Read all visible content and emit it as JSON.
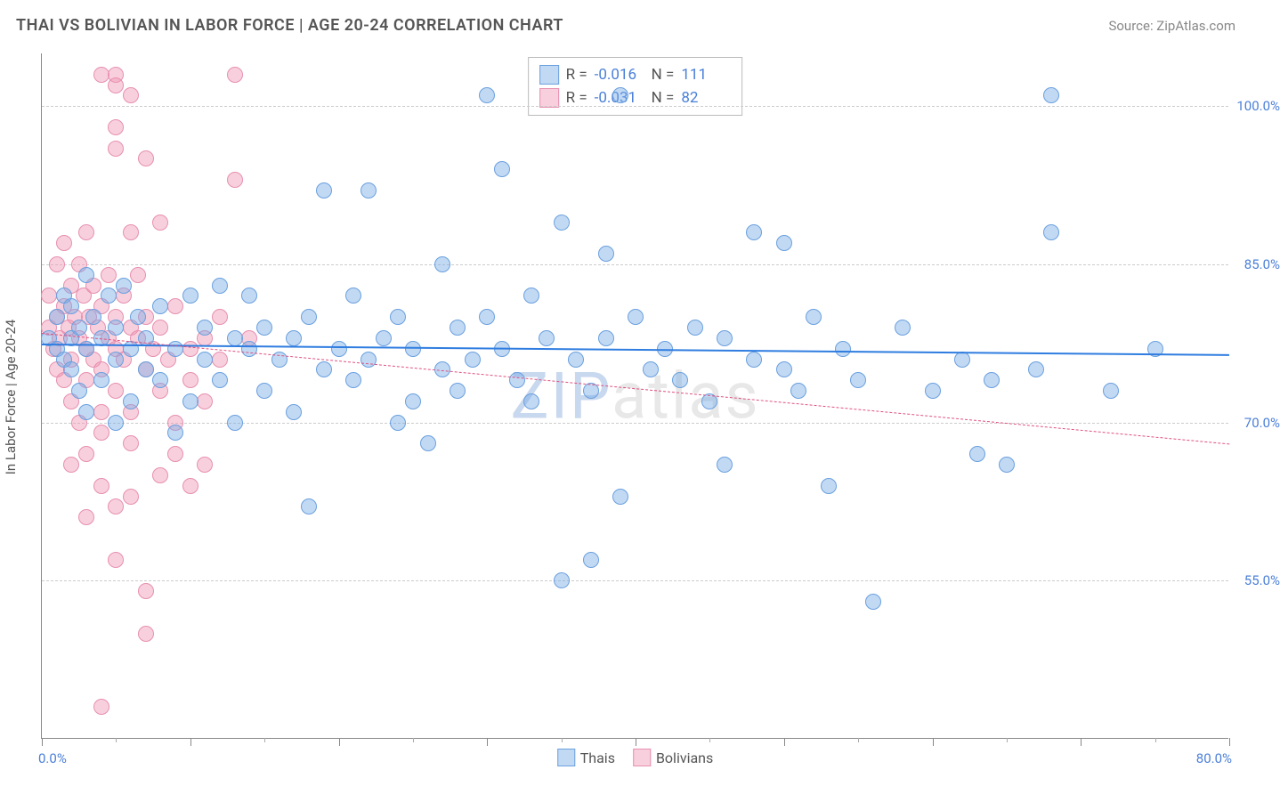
{
  "title": "THAI VS BOLIVIAN IN LABOR FORCE | AGE 20-24 CORRELATION CHART",
  "source": "Source: ZipAtlas.com",
  "ylabel": "In Labor Force | Age 20-24",
  "watermark": "ZIPatlas",
  "chart": {
    "type": "scatter",
    "background_color": "#ffffff",
    "grid_color": "#cccccc",
    "axis_color": "#888888",
    "xlim": [
      0,
      80
    ],
    "ylim": [
      40,
      105
    ],
    "x_tick_major_step": 10,
    "x_tick_minor_step": 5,
    "yticks": [
      55,
      70,
      85,
      100
    ],
    "ytick_labels": [
      "55.0%",
      "70.0%",
      "85.0%",
      "100.0%"
    ],
    "ytick_color": "#4a7fd8",
    "xaxis_min_label": "0.0%",
    "xaxis_max_label": "80.0%",
    "xaxis_label_color": "#4a7fd8",
    "marker_radius": 9,
    "marker_stroke_width": 1.5,
    "series": [
      {
        "name": "Thais",
        "fill": "rgba(120,170,230,0.45)",
        "stroke": "#6aa0de",
        "R": "-0.016",
        "N": "111",
        "trend": {
          "y_start": 77.5,
          "y_end": 76.5,
          "color": "#2f7de0",
          "width": 2.5,
          "dash": "solid"
        },
        "points": [
          [
            0.5,
            78
          ],
          [
            1,
            77
          ],
          [
            1,
            80
          ],
          [
            1.5,
            82
          ],
          [
            1.5,
            76
          ],
          [
            2,
            78
          ],
          [
            2,
            75
          ],
          [
            2,
            81
          ],
          [
            2.5,
            79
          ],
          [
            2.5,
            73
          ],
          [
            3,
            77
          ],
          [
            3,
            84
          ],
          [
            3,
            71
          ],
          [
            3.5,
            80
          ],
          [
            4,
            78
          ],
          [
            4,
            74
          ],
          [
            4.5,
            82
          ],
          [
            5,
            76
          ],
          [
            5,
            79
          ],
          [
            5,
            70
          ],
          [
            5.5,
            83
          ],
          [
            6,
            77
          ],
          [
            6,
            72
          ],
          [
            6.5,
            80
          ],
          [
            7,
            78
          ],
          [
            7,
            75
          ],
          [
            8,
            74
          ],
          [
            8,
            81
          ],
          [
            9,
            77
          ],
          [
            9,
            69
          ],
          [
            10,
            82
          ],
          [
            10,
            72
          ],
          [
            11,
            76
          ],
          [
            11,
            79
          ],
          [
            12,
            74
          ],
          [
            12,
            83
          ],
          [
            13,
            78
          ],
          [
            13,
            70
          ],
          [
            14,
            77
          ],
          [
            14,
            82
          ],
          [
            15,
            73
          ],
          [
            15,
            79
          ],
          [
            16,
            76
          ],
          [
            17,
            78
          ],
          [
            17,
            71
          ],
          [
            18,
            80
          ],
          [
            18,
            62
          ],
          [
            19,
            75
          ],
          [
            19,
            92
          ],
          [
            20,
            77
          ],
          [
            21,
            74
          ],
          [
            21,
            82
          ],
          [
            22,
            76
          ],
          [
            22,
            92
          ],
          [
            23,
            78
          ],
          [
            24,
            70
          ],
          [
            24,
            80
          ],
          [
            25,
            72
          ],
          [
            25,
            77
          ],
          [
            26,
            68
          ],
          [
            27,
            75
          ],
          [
            27,
            85
          ],
          [
            28,
            79
          ],
          [
            28,
            73
          ],
          [
            29,
            76
          ],
          [
            30,
            101
          ],
          [
            30,
            80
          ],
          [
            31,
            94
          ],
          [
            31,
            77
          ],
          [
            32,
            74
          ],
          [
            33,
            72
          ],
          [
            33,
            82
          ],
          [
            34,
            78
          ],
          [
            35,
            55
          ],
          [
            35,
            89
          ],
          [
            36,
            76
          ],
          [
            37,
            73
          ],
          [
            37,
            57
          ],
          [
            38,
            78
          ],
          [
            38,
            86
          ],
          [
            39,
            63
          ],
          [
            39,
            101
          ],
          [
            40,
            80
          ],
          [
            41,
            75
          ],
          [
            42,
            77
          ],
          [
            43,
            74
          ],
          [
            44,
            79
          ],
          [
            45,
            72
          ],
          [
            46,
            78
          ],
          [
            46,
            66
          ],
          [
            48,
            76
          ],
          [
            48,
            88
          ],
          [
            50,
            75
          ],
          [
            50,
            87
          ],
          [
            51,
            73
          ],
          [
            52,
            80
          ],
          [
            53,
            64
          ],
          [
            54,
            77
          ],
          [
            55,
            74
          ],
          [
            56,
            53
          ],
          [
            58,
            79
          ],
          [
            60,
            73
          ],
          [
            62,
            76
          ],
          [
            63,
            67
          ],
          [
            64,
            74
          ],
          [
            65,
            66
          ],
          [
            67,
            75
          ],
          [
            68,
            88
          ],
          [
            72,
            73
          ],
          [
            75,
            77
          ],
          [
            68,
            101
          ]
        ]
      },
      {
        "name": "Bolivians",
        "fill": "rgba(240,150,180,0.45)",
        "stroke": "#e78fb0",
        "R": "-0.031",
        "N": "82",
        "trend": {
          "y_start": 78.5,
          "y_end": 68.0,
          "color": "#e05080",
          "width": 1.2,
          "dash": "4 4"
        },
        "points": [
          [
            0.5,
            79
          ],
          [
            0.5,
            82
          ],
          [
            0.8,
            77
          ],
          [
            1,
            80
          ],
          [
            1,
            75
          ],
          [
            1,
            85
          ],
          [
            1.2,
            78
          ],
          [
            1.5,
            81
          ],
          [
            1.5,
            74
          ],
          [
            1.5,
            87
          ],
          [
            1.8,
            79
          ],
          [
            2,
            76
          ],
          [
            2,
            83
          ],
          [
            2,
            72
          ],
          [
            2.2,
            80
          ],
          [
            2.5,
            78
          ],
          [
            2.5,
            85
          ],
          [
            2.5,
            70
          ],
          [
            2.8,
            82
          ],
          [
            3,
            77
          ],
          [
            3,
            74
          ],
          [
            3,
            88
          ],
          [
            3.2,
            80
          ],
          [
            3.5,
            76
          ],
          [
            3.5,
            83
          ],
          [
            3.8,
            79
          ],
          [
            4,
            75
          ],
          [
            4,
            81
          ],
          [
            4,
            71
          ],
          [
            4.5,
            78
          ],
          [
            4.5,
            84
          ],
          [
            5,
            77
          ],
          [
            5,
            73
          ],
          [
            5,
            80
          ],
          [
            5.5,
            76
          ],
          [
            5.5,
            82
          ],
          [
            6,
            79
          ],
          [
            6,
            71
          ],
          [
            6.5,
            78
          ],
          [
            6.5,
            84
          ],
          [
            7,
            75
          ],
          [
            7,
            80
          ],
          [
            7.5,
            77
          ],
          [
            8,
            73
          ],
          [
            8,
            79
          ],
          [
            8.5,
            76
          ],
          [
            9,
            81
          ],
          [
            9,
            70
          ],
          [
            10,
            77
          ],
          [
            10,
            74
          ],
          [
            4,
            103
          ],
          [
            5,
            103
          ],
          [
            5,
            98
          ],
          [
            5,
            96
          ],
          [
            6,
            88
          ],
          [
            7,
            95
          ],
          [
            7,
            50
          ],
          [
            8,
            89
          ],
          [
            11,
            78
          ],
          [
            11,
            72
          ],
          [
            12,
            76
          ],
          [
            12,
            80
          ],
          [
            13,
            103
          ],
          [
            13,
            93
          ],
          [
            14,
            78
          ],
          [
            7,
            54
          ],
          [
            4,
            64
          ],
          [
            4,
            43
          ],
          [
            3,
            67
          ],
          [
            2,
            66
          ],
          [
            5,
            62
          ],
          [
            6,
            68
          ],
          [
            6,
            63
          ],
          [
            5,
            57
          ],
          [
            3,
            61
          ],
          [
            4,
            69
          ],
          [
            8,
            65
          ],
          [
            9,
            67
          ],
          [
            10,
            64
          ],
          [
            11,
            66
          ],
          [
            5,
            102
          ],
          [
            6,
            101
          ]
        ]
      }
    ],
    "stats_legend": {
      "label_color": "#555555",
      "value_color": "#4a7fd8"
    },
    "bottom_legend": {
      "text_color": "#555555"
    }
  }
}
